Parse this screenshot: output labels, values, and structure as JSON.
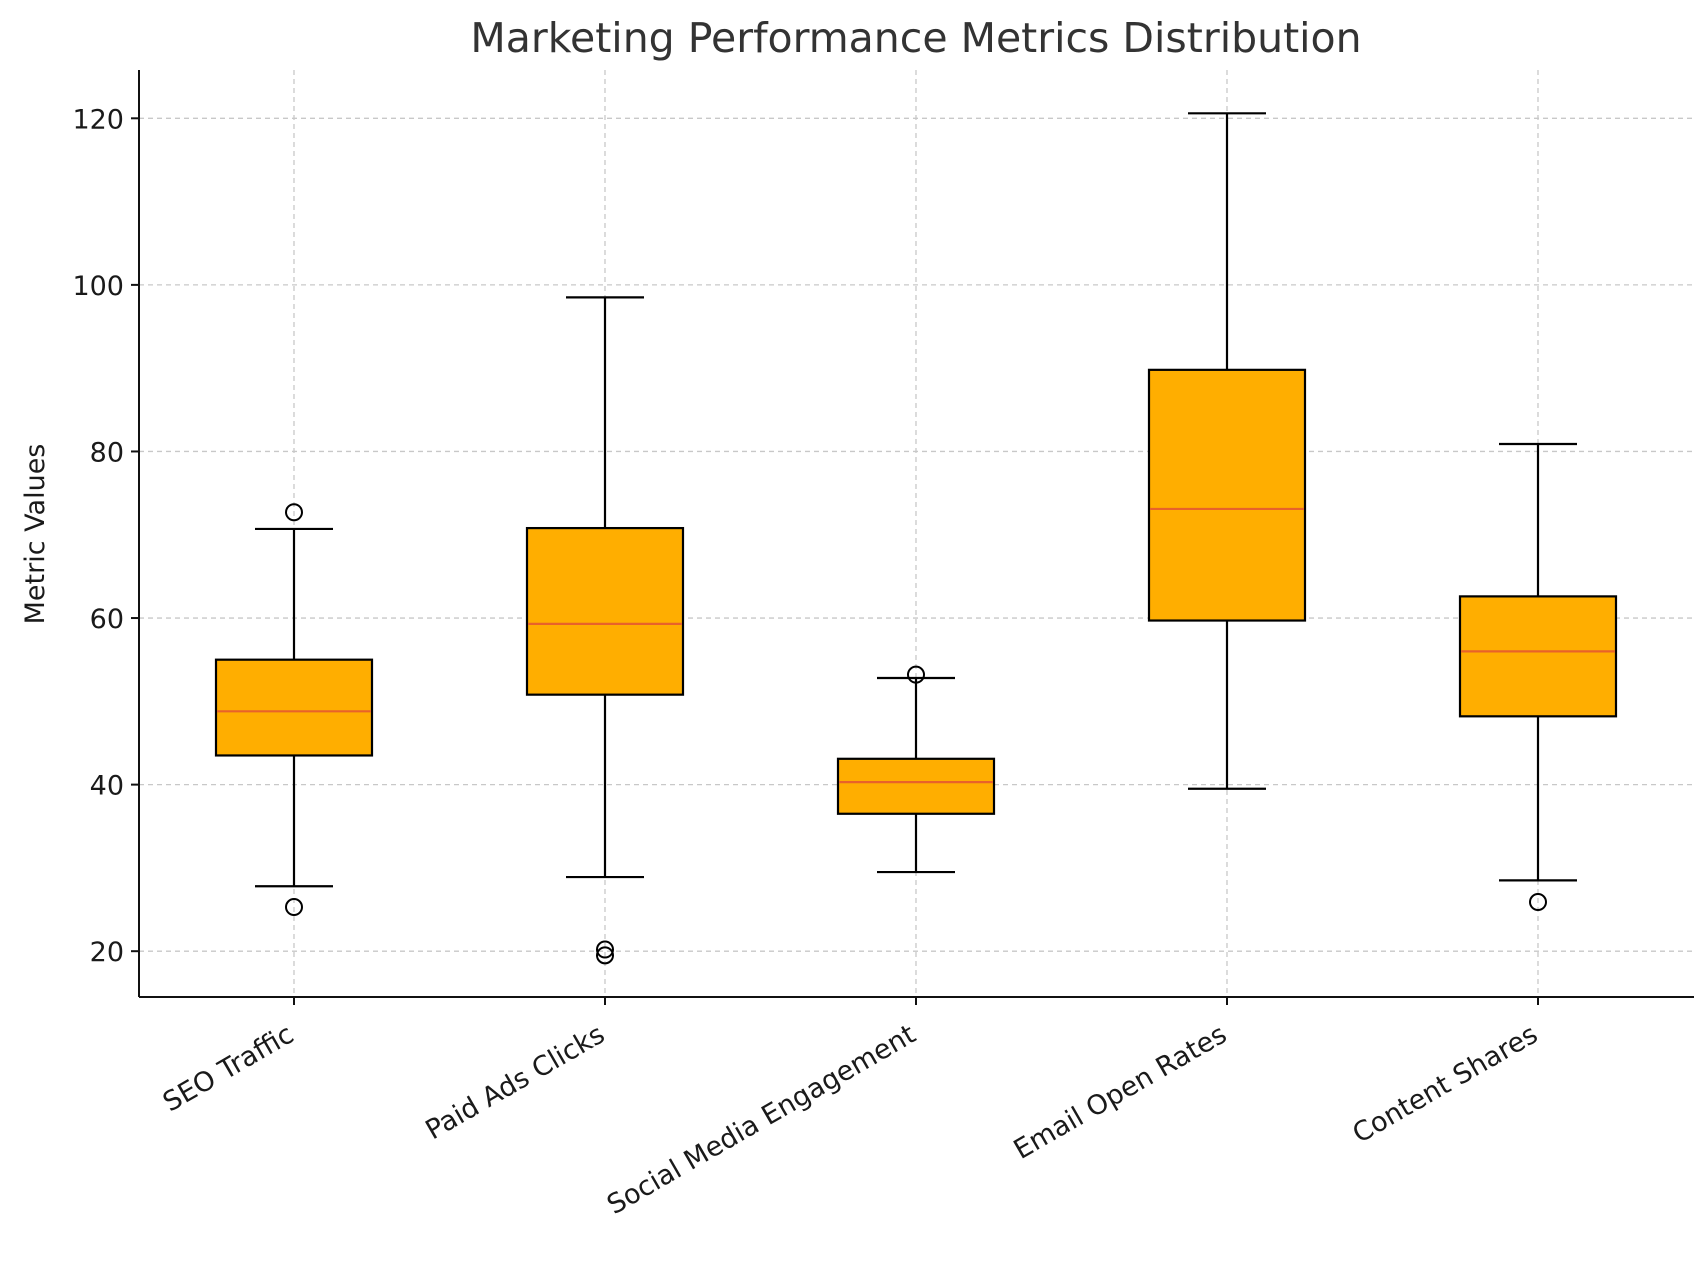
{
  "chart_data": {
    "type": "box",
    "title": "Marketing Performance Metrics Distribution",
    "xlabel": "",
    "ylabel": "Metric Values",
    "ylim": [
      14.5,
      125.8
    ],
    "yticks": [
      20,
      40,
      60,
      80,
      100,
      120
    ],
    "grid": true,
    "categories": [
      "SEO Traffic",
      "Paid Ads Clicks",
      "Social Media Engagement",
      "Email Open Rates",
      "Content Shares"
    ],
    "boxes": [
      {
        "category": "SEO Traffic",
        "whisker_low": 27.8,
        "q1": 43.5,
        "median": 48.8,
        "q3": 55.0,
        "whisker_high": 70.7,
        "outliers": [
          25.3,
          72.7
        ]
      },
      {
        "category": "Paid Ads Clicks",
        "whisker_low": 28.9,
        "q1": 50.8,
        "median": 59.3,
        "q3": 70.8,
        "whisker_high": 98.5,
        "outliers": [
          19.5,
          20.2
        ]
      },
      {
        "category": "Social Media Engagement",
        "whisker_low": 29.5,
        "q1": 36.5,
        "median": 40.3,
        "q3": 43.1,
        "whisker_high": 52.8,
        "outliers": [
          53.2
        ]
      },
      {
        "category": "Email Open Rates",
        "whisker_low": 39.5,
        "q1": 59.7,
        "median": 73.1,
        "q3": 89.8,
        "whisker_high": 120.6,
        "outliers": []
      },
      {
        "category": "Content Shares",
        "whisker_low": 28.5,
        "q1": 48.2,
        "median": 56.0,
        "q3": 62.6,
        "whisker_high": 80.9,
        "outliers": [
          25.9
        ]
      }
    ],
    "colors": {
      "box_fill": "#FFAE00",
      "median": "#E8622A",
      "edge": "#000000"
    }
  }
}
